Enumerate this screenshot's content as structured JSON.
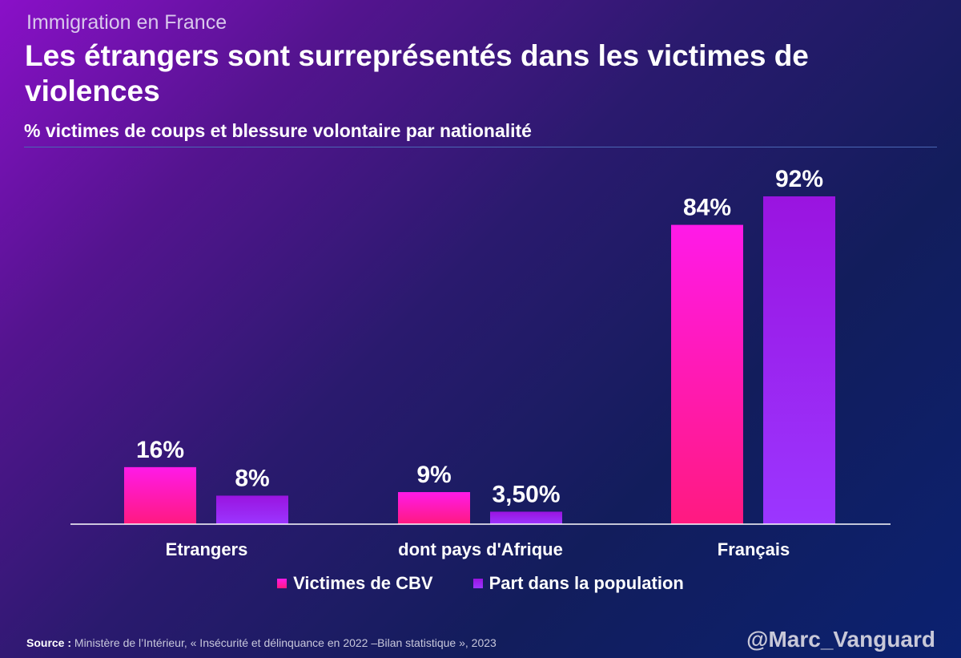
{
  "header": {
    "kicker": "Immigration en France",
    "title": "Les étrangers sont surreprésentés dans les victimes de violences",
    "subtitle": "% victimes de coups et blessure volontaire par nationalité"
  },
  "colors": {
    "victimes_top": "#ff1ae8",
    "victimes_bottom": "#ff1a80",
    "population_top": "#9a14e0",
    "population_bottom": "#9b36ff",
    "axis": "#ffffff"
  },
  "chart_data": {
    "type": "bar",
    "title": "% victimes de coups et blessure volontaire par nationalité",
    "categories": [
      "Etrangers",
      "dont pays d'Afrique",
      "Français"
    ],
    "series": [
      {
        "name": "Victimes de CBV",
        "values": [
          16,
          9,
          84
        ],
        "labels": [
          "16%",
          "9%",
          "84%"
        ]
      },
      {
        "name": "Part dans la population",
        "values": [
          8,
          3.5,
          92
        ],
        "labels": [
          "8%",
          "3,50%",
          "92%"
        ]
      }
    ],
    "xlabel": "",
    "ylabel": "",
    "ylim": [
      0,
      92
    ],
    "grid": false,
    "legend": "bottom"
  },
  "legend": {
    "victimes": "Victimes de CBV",
    "population": "Part dans la population"
  },
  "footer": {
    "source_label": "Source :",
    "source_text": " Ministère de l’Intérieur, « Insécurité et délinquance en 2022 –Bilan statistique », 2023",
    "handle": "@Marc_Vanguard"
  }
}
